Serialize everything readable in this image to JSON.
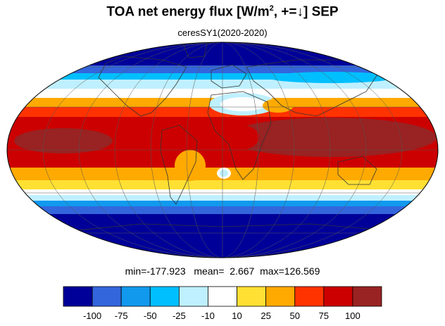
{
  "title": {
    "text_main": "TOA net energy flux  [W/m",
    "superscript": "2",
    "text_tail": ", +=↓] SEP"
  },
  "subtitle": "ceresSY1(2020-2020)",
  "stats": {
    "min_label": "min=",
    "min_value": "-177.923",
    "mean_label": "mean=",
    "mean_value": "2.667",
    "max_label": "max=",
    "max_value": "126.569"
  },
  "colorbar": {
    "colors": [
      "#000099",
      "#3366dd",
      "#1199ee",
      "#00bfff",
      "#bff0ff",
      "#ffffff",
      "#ffe033",
      "#ffaa00",
      "#ff3300",
      "#cc0000",
      "#992222"
    ],
    "tick_labels": [
      "-100",
      "-75",
      "-50",
      "-25",
      "-10",
      "10",
      "25",
      "50",
      "75",
      "100"
    ]
  },
  "map_colors": {
    "deep_blue": "#000099",
    "blue": "#3366dd",
    "mid_blue": "#1199ee",
    "sky_blue": "#00bfff",
    "pale_blue": "#bff0ff",
    "white": "#ffffff",
    "yellow": "#ffe033",
    "orange": "#ffaa00",
    "red_orange": "#ff3300",
    "red": "#cc0000",
    "dark_red": "#992222"
  },
  "projection": "Mollweide"
}
